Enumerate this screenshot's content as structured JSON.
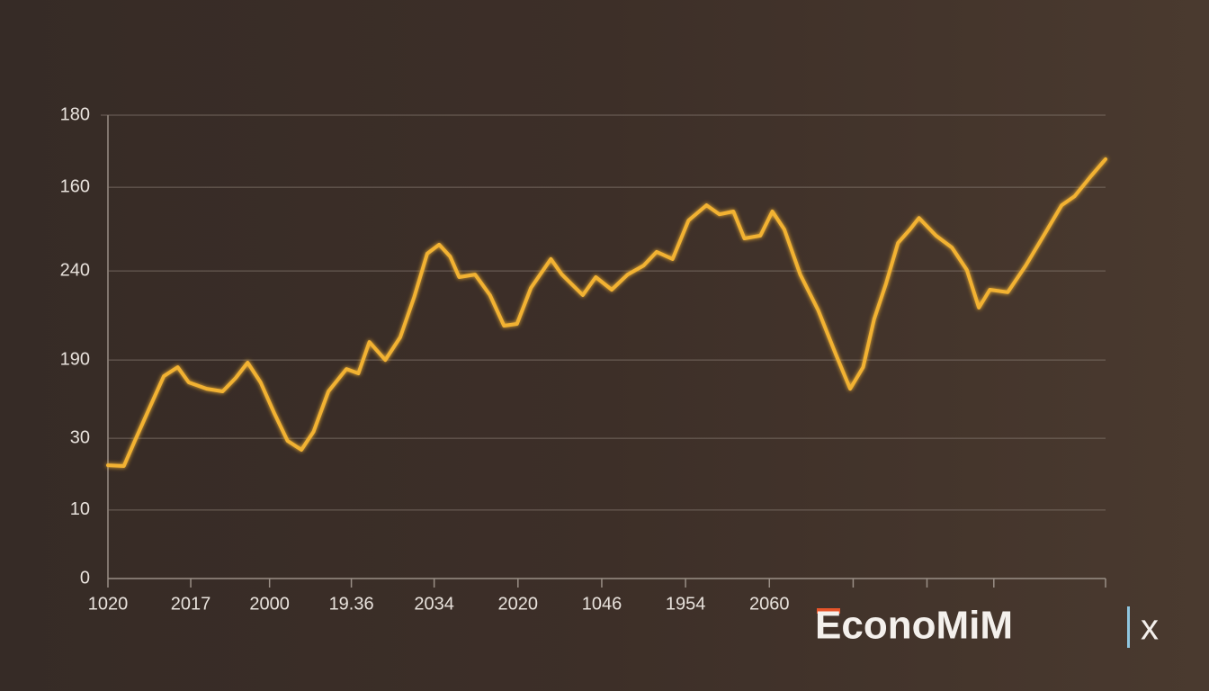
{
  "chart_data": {
    "type": "line",
    "x": [
      0,
      1.6,
      2.7,
      4.1,
      5.6,
      7.0,
      8.1,
      9.9,
      11.5,
      12.8,
      14.0,
      15.3,
      16.7,
      18.0,
      19.4,
      20.6,
      22.1,
      23.9,
      25.1,
      26.2,
      27.8,
      29.3,
      30.7,
      32.0,
      33.2,
      34.3,
      35.2,
      36.8,
      38.3,
      39.7,
      41.0,
      42.4,
      44.4,
      45.5,
      47.6,
      48.9,
      50.5,
      52.1,
      53.7,
      55.0,
      56.6,
      58.2,
      60.0,
      61.3,
      62.7,
      63.8,
      65.4,
      66.6,
      67.8,
      69.4,
      71.2,
      73.0,
      74.4,
      75.7,
      76.8,
      78.0,
      79.2,
      80.4,
      81.3,
      83.0,
      84.6,
      86.1,
      87.3,
      88.4,
      90.2,
      92.0,
      93.8,
      95.6,
      96.9,
      98.6,
      100
    ],
    "series": [
      {
        "color": "#f2b233",
        "values": [
          44.0,
          43.7,
          53.5,
          65.7,
          78.6,
          82.1,
          76.2,
          73.7,
          72.7,
          77.9,
          83.9,
          76.2,
          64.0,
          53.5,
          50.0,
          57.0,
          72.7,
          81.4,
          79.7,
          91.9,
          84.9,
          93.7,
          109.4,
          126.2,
          129.7,
          125.1,
          117.1,
          118.1,
          110.1,
          98.2,
          98.9,
          112.9,
          124.1,
          118.1,
          110.1,
          117.1,
          112.2,
          118.1,
          121.6,
          126.9,
          124.1,
          139.1,
          145.0,
          141.5,
          142.6,
          132.1,
          133.2,
          142.6,
          135.6,
          118.1,
          104.2,
          86.7,
          73.7,
          82.1,
          100.7,
          114.6,
          130.4,
          135.6,
          140.1,
          133.2,
          128.6,
          119.9,
          105.2,
          112.2,
          111.2,
          121.6,
          133.2,
          145.0,
          148.5,
          156.6,
          162.9
        ]
      }
    ],
    "xlim": [
      0,
      100
    ],
    "xticks": [
      {
        "value": 0,
        "label": "1020"
      },
      {
        "value": 8.3,
        "label": "2017"
      },
      {
        "value": 16.2,
        "label": "2000"
      },
      {
        "value": 24.4,
        "label": "19.36"
      },
      {
        "value": 32.7,
        "label": "2034"
      },
      {
        "value": 41.1,
        "label": "2020"
      },
      {
        "value": 49.5,
        "label": "1046"
      },
      {
        "value": 57.9,
        "label": "1954"
      },
      {
        "value": 66.3,
        "label": "2060"
      },
      {
        "value": 74.7
      },
      {
        "value": 82.1
      },
      {
        "value": 88.8
      },
      {
        "value": 100
      }
    ],
    "ylim": [
      0,
      180
    ],
    "yticks": [
      0,
      {
        "value": 26.6,
        "label": "10"
      },
      {
        "value": 54.5,
        "label": "30"
      },
      {
        "value": 84.9,
        "label": "190"
      },
      {
        "value": 119.5,
        "label": "240"
      },
      {
        "value": 152,
        "label": "160"
      },
      180
    ],
    "grid": true
  },
  "logo": "EconoMiM",
  "logo_suffix": "x"
}
